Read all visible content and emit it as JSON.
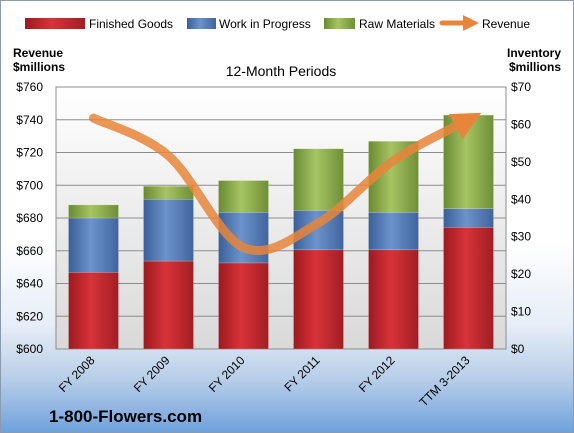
{
  "chart_data": {
    "type": "bar",
    "title": "12-Month Periods",
    "brand": "1-800-Flowers.com",
    "categories": [
      "FY 2008",
      "FY 2009",
      "FY 2010",
      "FY 2011",
      "FY 2012",
      "TTM 3-2013"
    ],
    "left_axis": {
      "label_line1": "Revenue",
      "label_line2": "$millions",
      "min": 600,
      "max": 760,
      "step": 20,
      "ticks": [
        "$600",
        "$620",
        "$640",
        "$660",
        "$680",
        "$700",
        "$720",
        "$740",
        "$760"
      ]
    },
    "right_axis": {
      "label_line1": "Inventory",
      "label_line2": "$millions",
      "min": 0,
      "max": 70,
      "step": 10,
      "ticks": [
        "$0",
        "$10",
        "$20",
        "$30",
        "$40",
        "$50",
        "$60",
        "$70"
      ]
    },
    "series": [
      {
        "name": "Finished Goods",
        "kind": "stacked-bar",
        "axis": "right",
        "color": "#c0272d",
        "values": [
          20.5,
          23.5,
          23,
          26.5,
          26.5,
          32.5
        ]
      },
      {
        "name": "Work in Progress",
        "kind": "stacked-bar",
        "axis": "right",
        "color": "#4f7bbd",
        "values": [
          14.5,
          16.5,
          13.5,
          10.5,
          10,
          5
        ]
      },
      {
        "name": "Raw Materials",
        "kind": "stacked-bar",
        "axis": "right",
        "color": "#8fb04b",
        "values": [
          3.5,
          3.5,
          8.5,
          16.5,
          19,
          25
        ]
      },
      {
        "name": "Revenue",
        "kind": "line",
        "axis": "left",
        "color": "#e8853a",
        "values": [
          741,
          718,
          662,
          677,
          715,
          740
        ]
      }
    ],
    "grid": true,
    "legend_position": "top"
  }
}
